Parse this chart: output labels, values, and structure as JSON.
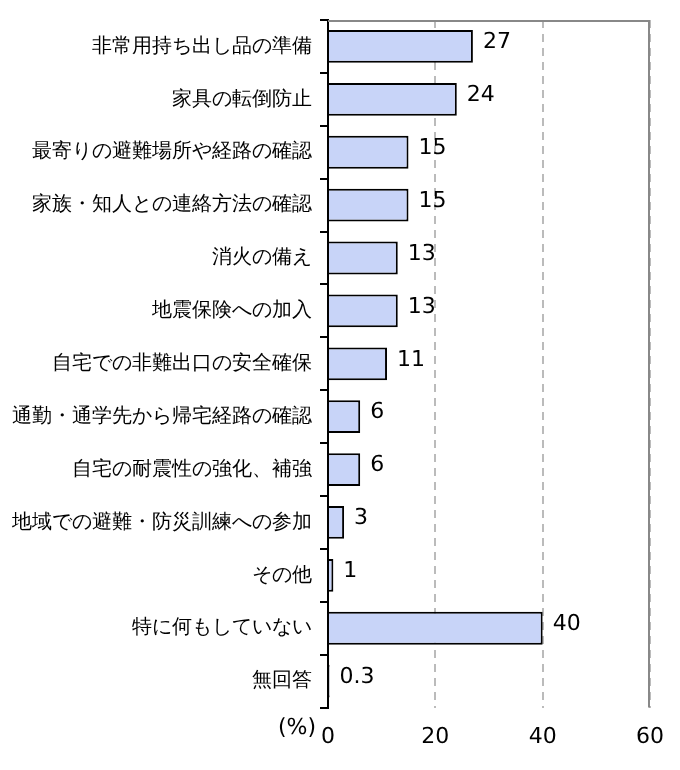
{
  "chart_data": {
    "type": "bar",
    "orientation": "horizontal",
    "xlabel": "(%)",
    "categories": [
      "非常用持ち出し品の準備",
      "家具の転倒防止",
      "最寄りの避難場所や経路の確認",
      "家族・知人との連絡方法の確認",
      "消火の備え",
      "地震保険への加入",
      "自宅での非難出口の安全確保",
      "通勤・通学先から帰宅経路の確認",
      "自宅の耐震性の強化、補強",
      "地域での避難・防災訓練への参加",
      "その他",
      "特に何もしていない",
      "無回答"
    ],
    "values": [
      27,
      24,
      15,
      15,
      13,
      13,
      11,
      6,
      6,
      3,
      1,
      40,
      0.3
    ],
    "color": "#c8d4f8",
    "xlim": [
      0,
      60
    ],
    "xticks": [
      0,
      20,
      40,
      60
    ],
    "grid": "x",
    "data_labels": true,
    "legend": false
  }
}
